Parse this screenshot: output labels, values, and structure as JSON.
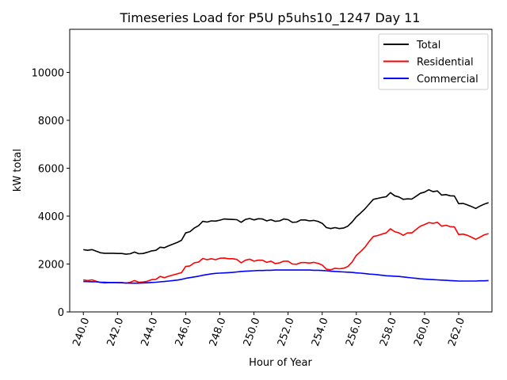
{
  "chart_data": {
    "type": "line",
    "title": "Timeseries Load for P5U p5uhs10_1247  Day 11",
    "xlabel": "Hour of Year",
    "ylabel": "kW total",
    "xlim": [
      239.2,
      263.95
    ],
    "ylim": [
      0,
      11800
    ],
    "x_ticks": [
      240,
      242,
      244,
      246,
      248,
      250,
      252,
      254,
      256,
      258,
      260,
      262
    ],
    "x_tick_labels": [
      "240.0",
      "242.0",
      "244.0",
      "246.0",
      "248.0",
      "250.0",
      "252.0",
      "254.0",
      "256.0",
      "258.0",
      "260.0",
      "262.0"
    ],
    "y_ticks": [
      0,
      2000,
      4000,
      6000,
      8000,
      10000
    ],
    "y_tick_labels": [
      "0",
      "2000",
      "4000",
      "6000",
      "8000",
      "10000"
    ],
    "grid": false,
    "legend_position": "top-right",
    "x": [
      240.0,
      240.25,
      240.5,
      240.75,
      241.0,
      241.25,
      241.5,
      241.75,
      242.0,
      242.25,
      242.5,
      242.75,
      243.0,
      243.25,
      243.5,
      243.75,
      244.0,
      244.25,
      244.5,
      244.75,
      245.0,
      245.25,
      245.5,
      245.75,
      246.0,
      246.25,
      246.5,
      246.75,
      247.0,
      247.25,
      247.5,
      247.75,
      248.0,
      248.25,
      248.5,
      248.75,
      249.0,
      249.25,
      249.5,
      249.75,
      250.0,
      250.25,
      250.5,
      250.75,
      251.0,
      251.25,
      251.5,
      251.75,
      252.0,
      252.25,
      252.5,
      252.75,
      253.0,
      253.25,
      253.5,
      253.75,
      254.0,
      254.25,
      254.5,
      254.75,
      255.0,
      255.25,
      255.5,
      255.75,
      256.0,
      256.25,
      256.5,
      256.75,
      257.0,
      257.25,
      257.5,
      257.75,
      258.0,
      258.25,
      258.5,
      258.75,
      259.0,
      259.25,
      259.5,
      259.75,
      260.0,
      260.25,
      260.5,
      260.75,
      261.0,
      261.25,
      261.5,
      261.75,
      262.0,
      262.25,
      262.5,
      262.75,
      263.0,
      263.25,
      263.5,
      263.75
    ],
    "series": [
      {
        "name": "Total",
        "color": "#000000",
        "values": [
          2600,
          2570,
          2600,
          2540,
          2470,
          2450,
          2450,
          2450,
          2440,
          2440,
          2410,
          2430,
          2500,
          2430,
          2440,
          2490,
          2550,
          2570,
          2700,
          2680,
          2760,
          2830,
          2900,
          2990,
          3300,
          3350,
          3500,
          3600,
          3780,
          3750,
          3800,
          3790,
          3830,
          3880,
          3870,
          3860,
          3850,
          3740,
          3860,
          3900,
          3840,
          3890,
          3880,
          3800,
          3850,
          3780,
          3800,
          3880,
          3850,
          3740,
          3750,
          3840,
          3840,
          3800,
          3820,
          3780,
          3700,
          3520,
          3480,
          3520,
          3480,
          3500,
          3580,
          3750,
          3970,
          4130,
          4300,
          4500,
          4700,
          4740,
          4780,
          4810,
          4980,
          4850,
          4800,
          4700,
          4720,
          4710,
          4830,
          4950,
          5000,
          5100,
          5020,
          5050,
          4880,
          4900,
          4850,
          4840,
          4520,
          4530,
          4470,
          4400,
          4320,
          4420,
          4500,
          4560
        ]
      },
      {
        "name": "Residential",
        "color": "#ff0000",
        "values": [
          1340,
          1310,
          1340,
          1280,
          1230,
          1210,
          1220,
          1220,
          1220,
          1230,
          1200,
          1240,
          1310,
          1240,
          1250,
          1280,
          1350,
          1360,
          1480,
          1430,
          1490,
          1540,
          1590,
          1640,
          1900,
          1920,
          2050,
          2080,
          2230,
          2180,
          2220,
          2180,
          2240,
          2250,
          2220,
          2220,
          2190,
          2050,
          2160,
          2200,
          2120,
          2160,
          2160,
          2070,
          2120,
          2020,
          2050,
          2120,
          2120,
          2000,
          1990,
          2060,
          2060,
          2040,
          2070,
          2030,
          1960,
          1780,
          1760,
          1820,
          1800,
          1820,
          1890,
          2080,
          2360,
          2520,
          2700,
          2940,
          3150,
          3190,
          3250,
          3300,
          3470,
          3350,
          3300,
          3200,
          3300,
          3300,
          3440,
          3580,
          3650,
          3730,
          3700,
          3740,
          3580,
          3620,
          3560,
          3550,
          3230,
          3250,
          3200,
          3120,
          3030,
          3120,
          3220,
          3270
        ]
      },
      {
        "name": "Commercial",
        "color": "#0000ff",
        "values": [
          1270,
          1265,
          1260,
          1255,
          1240,
          1235,
          1230,
          1230,
          1225,
          1215,
          1210,
          1200,
          1200,
          1200,
          1205,
          1215,
          1230,
          1240,
          1255,
          1270,
          1290,
          1310,
          1330,
          1360,
          1400,
          1430,
          1460,
          1490,
          1530,
          1560,
          1590,
          1610,
          1620,
          1630,
          1640,
          1650,
          1670,
          1690,
          1700,
          1710,
          1720,
          1730,
          1730,
          1740,
          1740,
          1750,
          1750,
          1750,
          1750,
          1750,
          1750,
          1750,
          1750,
          1750,
          1740,
          1740,
          1730,
          1720,
          1700,
          1690,
          1680,
          1670,
          1660,
          1650,
          1630,
          1620,
          1600,
          1580,
          1570,
          1550,
          1530,
          1510,
          1500,
          1490,
          1480,
          1460,
          1440,
          1420,
          1400,
          1380,
          1370,
          1360,
          1350,
          1340,
          1330,
          1320,
          1310,
          1300,
          1290,
          1290,
          1290,
          1290,
          1290,
          1300,
          1300,
          1310
        ]
      }
    ]
  }
}
